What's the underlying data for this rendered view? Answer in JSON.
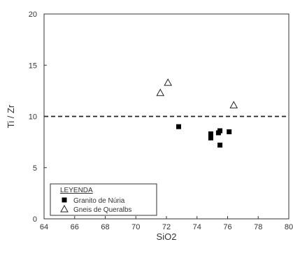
{
  "chart_data": {
    "type": "scatter",
    "xlabel": "SiO2",
    "ylabel": "Ti / Zr",
    "xlim": [
      64,
      80
    ],
    "ylim": [
      0,
      20
    ],
    "x_ticks": [
      64,
      66,
      68,
      70,
      72,
      74,
      76,
      78,
      80
    ],
    "y_ticks": [
      0,
      5,
      10,
      15,
      20
    ],
    "reference_line": {
      "y": 10,
      "style": "dashed"
    },
    "legend": {
      "title": "LEYENDA",
      "position": "bottom-left"
    },
    "series": [
      {
        "name": "Granito de Núria",
        "marker": "filled-square",
        "color": "#000000",
        "points": [
          [
            72.8,
            9.0
          ],
          [
            74.9,
            8.3
          ],
          [
            74.9,
            7.9
          ],
          [
            75.4,
            8.4
          ],
          [
            75.5,
            8.6
          ],
          [
            75.5,
            7.2
          ],
          [
            76.1,
            8.5
          ]
        ]
      },
      {
        "name": "Gneis de Queralbs",
        "marker": "open-triangle",
        "color": "#000000",
        "points": [
          [
            71.6,
            12.3
          ],
          [
            72.1,
            13.3
          ],
          [
            76.4,
            11.1
          ]
        ]
      }
    ]
  }
}
